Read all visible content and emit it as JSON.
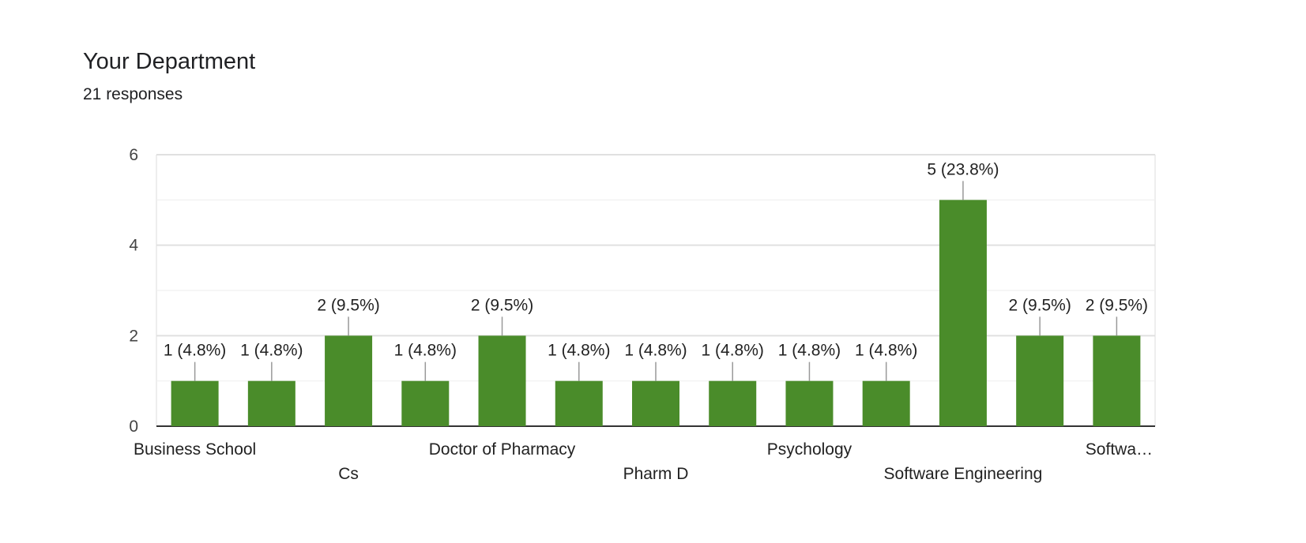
{
  "title": "Your Department",
  "subtitle": "21 responses",
  "colors": {
    "bar": "#4a8c2a",
    "grid": "#e8e8e8",
    "baseline": "#333333",
    "leader": "#999999"
  },
  "chart_data": {
    "type": "bar",
    "title": "Your Department",
    "categories": [
      "Business School",
      "",
      "Cs",
      "",
      "Doctor of Pharmacy",
      "",
      "Pharm D",
      "",
      "Psychology",
      "",
      "Software Engineering",
      "",
      "Softwa…"
    ],
    "values": [
      1,
      1,
      2,
      1,
      2,
      1,
      1,
      1,
      1,
      1,
      5,
      2,
      2
    ],
    "data_labels": [
      "1 (4.8%)",
      "1 (4.8%)",
      "2 (9.5%)",
      "1 (4.8%)",
      "2 (9.5%)",
      "1 (4.8%)",
      "1 (4.8%)",
      "1 (4.8%)",
      "1 (4.8%)",
      "1 (4.8%)",
      "5 (23.8%)",
      "2 (9.5%)",
      "2 (9.5%)"
    ],
    "ylim": [
      0,
      6
    ],
    "yticks": [
      0,
      2,
      4,
      6
    ],
    "grid": true,
    "legend": "none"
  }
}
